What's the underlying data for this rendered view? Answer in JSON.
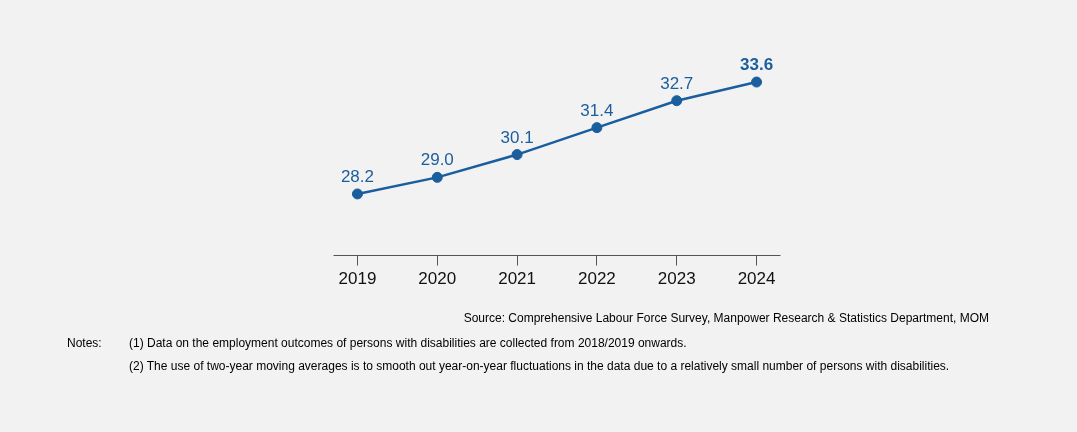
{
  "chart_data": {
    "type": "line",
    "categories": [
      "2019",
      "2020",
      "2021",
      "2022",
      "2023",
      "2024"
    ],
    "series": [
      {
        "color": "#1a5e9e",
        "values": [
          28.2,
          29.0,
          30.1,
          31.4,
          32.7,
          33.6
        ],
        "value_labels": [
          "28.2",
          "29.0",
          "30.1",
          "31.4",
          "32.7",
          "33.6"
        ]
      }
    ],
    "marker": "circle",
    "line_style": "solid",
    "grid": false,
    "tick_labels": "x",
    "annotations": [
      "Source: Comprehensive Labour Force Survey, Manpower Research & Statistics Department, MOM",
      "Notes:",
      "(1)  Data on the employment outcomes of persons with disabilities are collected from 2018/2019 onwards.",
      "(2)  The use of two-year moving averages is to smooth out year-on-year fluctuations in the data due to a relatively small number of persons with disabilities."
    ]
  }
}
